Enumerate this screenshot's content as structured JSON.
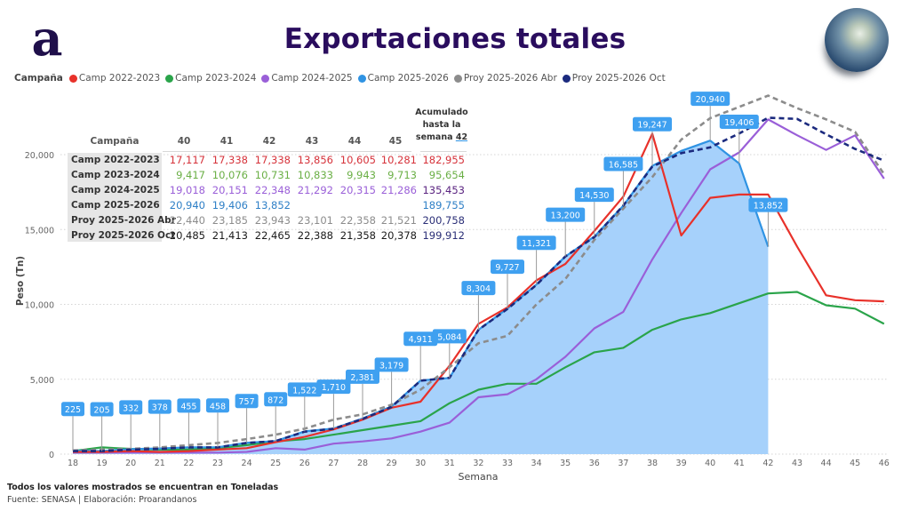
{
  "header": {
    "title": "Exportaciones totales",
    "logo_letter": "a",
    "logo_icon": "brand-logo-icon",
    "globe_icon": "earth-globe-icon"
  },
  "legend": {
    "title": "Campaña",
    "items": [
      {
        "label": "Camp 2022-2023",
        "color": "#e8312a"
      },
      {
        "label": "Camp 2023-2024",
        "color": "#2aa44a"
      },
      {
        "label": "Camp 2024-2025",
        "color": "#9a5fd8"
      },
      {
        "label": "Camp 2025-2026",
        "color": "#2f93e3"
      },
      {
        "label": "Proy 2025-2026 Abr",
        "color": "#8c8c8c"
      },
      {
        "label": "Proy 2025-2026 Oct",
        "color": "#1b2a7e"
      }
    ]
  },
  "table": {
    "row_header": "Campaña",
    "columns": [
      "40",
      "41",
      "42",
      "43",
      "44",
      "45"
    ],
    "total_header_line1": "Acumulado",
    "total_header_line2": "hasta la",
    "total_header_line3": "semana",
    "total_header_week": "42",
    "rows": [
      {
        "label": "Camp 2022-2023",
        "values": [
          "17,117",
          "17,338",
          "17,338",
          "13,856",
          "10,605",
          "10,281"
        ],
        "total": "182,955",
        "color": "#d6323a",
        "total_color": "#d6323a"
      },
      {
        "label": "Camp 2023-2024",
        "values": [
          "9,417",
          "10,076",
          "10,731",
          "10,833",
          "9,943",
          "9,713"
        ],
        "total": "95,654",
        "color": "#6aaf45",
        "total_color": "#6aaf45"
      },
      {
        "label": "Camp 2024-2025",
        "values": [
          "19,018",
          "20,151",
          "22,348",
          "21,292",
          "20,315",
          "21,286"
        ],
        "total": "135,453",
        "color": "#9a5fd8",
        "total_color": "#5a2380"
      },
      {
        "label": "Camp 2025-2026",
        "values": [
          "20,940",
          "19,406",
          "13,852",
          "",
          "",
          ""
        ],
        "total": "189,755",
        "color": "#2e7fc6",
        "total_color": "#2e7fc6"
      },
      {
        "label": "Proy 2025-2026 Abr",
        "values": [
          "22,440",
          "23,185",
          "23,943",
          "23,101",
          "22,358",
          "21,521"
        ],
        "total": "200,758",
        "color": "#8c8c8c",
        "total_color": "#2b2f77"
      },
      {
        "label": "Proy 2025-2026 Oct",
        "values": [
          "20,485",
          "21,413",
          "22,465",
          "22,388",
          "21,358",
          "20,378"
        ],
        "total": "199,912",
        "color": "#1a1a1a",
        "total_color": "#2b2f77"
      }
    ]
  },
  "footer": {
    "note": "Todos los valores mostrados se encuentran en Toneladas",
    "source": "Fuente: SENASA | Elaboración: Proarandanos"
  },
  "chart_data": {
    "type": "line",
    "title": "Exportaciones totales",
    "xlabel": "Semana",
    "ylabel": "Peso (Tn)",
    "x": [
      18,
      19,
      20,
      21,
      22,
      23,
      24,
      25,
      26,
      27,
      28,
      29,
      30,
      31,
      32,
      33,
      34,
      35,
      36,
      37,
      38,
      39,
      40,
      41,
      42,
      43,
      44,
      45,
      46
    ],
    "ylim": [
      0,
      20000
    ],
    "yticks": [
      0,
      5000,
      10000,
      15000,
      20000
    ],
    "ytick_labels": [
      "0",
      "5,000",
      "10,000",
      "15,000",
      "20,000"
    ],
    "grid": true,
    "legend_position": "top-left",
    "series": [
      {
        "name": "Camp 2022-2023",
        "color": "#e8312a",
        "style": "solid",
        "values": [
          150,
          150,
          200,
          150,
          200,
          300,
          400,
          800,
          1150,
          1650,
          2300,
          3100,
          3500,
          5900,
          8700,
          9800,
          11600,
          12700,
          14900,
          17200,
          21400,
          14600,
          17117,
          17338,
          17338,
          13856,
          10605,
          10281,
          10200
        ]
      },
      {
        "name": "Camp 2023-2024",
        "color": "#2aa44a",
        "style": "solid",
        "values": [
          200,
          450,
          350,
          300,
          300,
          400,
          600,
          850,
          1000,
          1300,
          1600,
          1900,
          2200,
          3400,
          4300,
          4700,
          4700,
          5800,
          6800,
          7100,
          8300,
          9000,
          9417,
          10076,
          10731,
          10833,
          9943,
          9713,
          8700
        ]
      },
      {
        "name": "Camp 2024-2025",
        "color": "#9a5fd8",
        "style": "solid",
        "values": [
          100,
          100,
          100,
          100,
          100,
          100,
          150,
          400,
          300,
          700,
          850,
          1050,
          1500,
          2100,
          3800,
          4000,
          5000,
          6500,
          8400,
          9500,
          13000,
          16100,
          19018,
          20151,
          22348,
          21292,
          20315,
          21286,
          18400
        ]
      },
      {
        "name": "Camp 2025-2026",
        "color": "#2f93e3",
        "style": "area",
        "fill": "#a6d1fb",
        "values": [
          225,
          205,
          332,
          378,
          455,
          458,
          757,
          872,
          1522,
          1710,
          2381,
          3179,
          4911,
          5084,
          8304,
          9727,
          11321,
          13200,
          14530,
          16585,
          19247,
          20250,
          20940,
          19406,
          13852,
          null,
          null,
          null,
          null
        ]
      },
      {
        "name": "Proy 2025-2026 Abr",
        "color": "#8c8c8c",
        "style": "dashed",
        "values": [
          250,
          300,
          350,
          450,
          600,
          750,
          1000,
          1300,
          1700,
          2300,
          2650,
          3300,
          4300,
          5800,
          7400,
          7900,
          10000,
          11700,
          14300,
          16400,
          18500,
          21000,
          22440,
          23185,
          23943,
          23101,
          22358,
          21521,
          18700
        ]
      },
      {
        "name": "Proy 2025-2026 Oct",
        "color": "#1b2a7e",
        "style": "dashed",
        "values": [
          200,
          200,
          300,
          350,
          450,
          450,
          750,
          870,
          1500,
          1700,
          2350,
          3150,
          4900,
          5100,
          8300,
          9700,
          11300,
          13200,
          14500,
          16600,
          19200,
          20100,
          20485,
          21413,
          22465,
          22388,
          21358,
          20378,
          19600
        ]
      }
    ],
    "data_labels": {
      "series": "Camp 2025-2026",
      "color": "#3fa0f0",
      "items": [
        {
          "week": 18,
          "text": "225"
        },
        {
          "week": 19,
          "text": "205"
        },
        {
          "week": 20,
          "text": "332"
        },
        {
          "week": 21,
          "text": "378"
        },
        {
          "week": 22,
          "text": "455"
        },
        {
          "week": 23,
          "text": "458"
        },
        {
          "week": 24,
          "text": "757"
        },
        {
          "week": 25,
          "text": "872"
        },
        {
          "week": 26,
          "text": "1,522"
        },
        {
          "week": 27,
          "text": "1,710"
        },
        {
          "week": 28,
          "text": "2,381"
        },
        {
          "week": 29,
          "text": "3,179"
        },
        {
          "week": 30,
          "text": "4,911"
        },
        {
          "week": 31,
          "text": "5,084"
        },
        {
          "week": 32,
          "text": "8,304"
        },
        {
          "week": 33,
          "text": "9,727"
        },
        {
          "week": 34,
          "text": "11,321"
        },
        {
          "week": 35,
          "text": "13,200"
        },
        {
          "week": 36,
          "text": "14,530"
        },
        {
          "week": 37,
          "text": "16,585"
        },
        {
          "week": 38,
          "text": "19,247"
        },
        {
          "week": 40,
          "text": "20,940"
        },
        {
          "week": 41,
          "text": "19,406"
        },
        {
          "week": 42,
          "text": "13,852"
        }
      ]
    }
  }
}
